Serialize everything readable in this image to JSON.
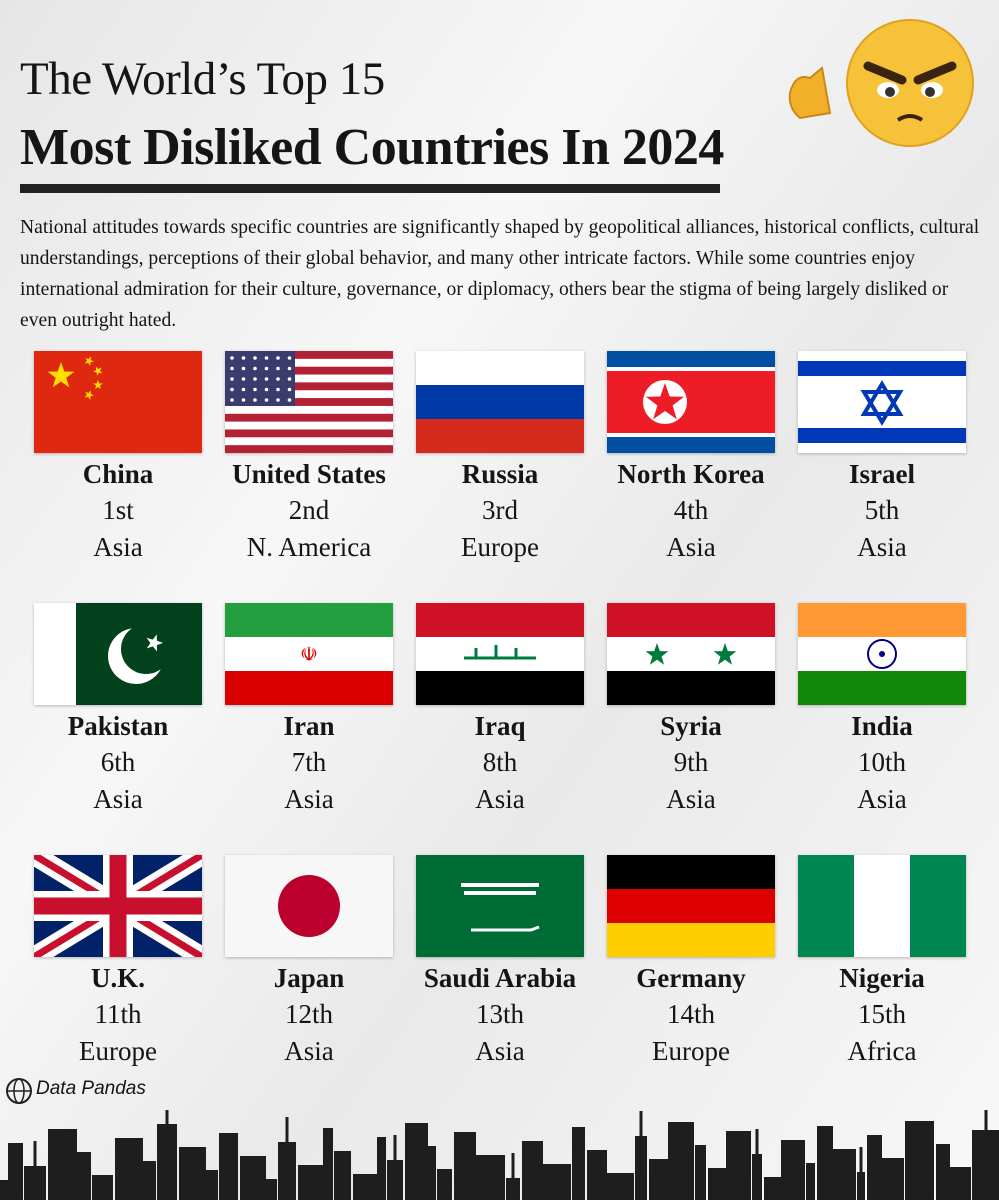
{
  "header": {
    "title_line1": "The World’s Top 15",
    "title_line2": "Most Disliked Countries In 2024",
    "intro": "National attitudes towards specific countries are significantly shaped by geopolitical alliances, historical conflicts, cultural understandings, perceptions of their global behavior, and many other intricate factors. While some countries enjoy international admiration for their culture, governance, or diplomacy, others bear the stigma of being largely disliked or even outright hated."
  },
  "countries": [
    {
      "name": "China",
      "rank": "1st",
      "region": "Asia"
    },
    {
      "name": "United States",
      "rank": "2nd",
      "region": "N. America"
    },
    {
      "name": "Russia",
      "rank": "3rd",
      "region": "Europe"
    },
    {
      "name": "North Korea",
      "rank": "4th",
      "region": "Asia"
    },
    {
      "name": "Israel",
      "rank": "5th",
      "region": "Asia"
    },
    {
      "name": "Pakistan",
      "rank": "6th",
      "region": "Asia"
    },
    {
      "name": "Iran",
      "rank": "7th",
      "region": "Asia"
    },
    {
      "name": "Iraq",
      "rank": "8th",
      "region": "Asia"
    },
    {
      "name": "Syria",
      "rank": "9th",
      "region": "Asia"
    },
    {
      "name": "India",
      "rank": "10th",
      "region": "Asia"
    },
    {
      "name": "U.K.",
      "rank": "11th",
      "region": "Europe"
    },
    {
      "name": "Japan",
      "rank": "12th",
      "region": "Asia"
    },
    {
      "name": "Saudi Arabia",
      "rank": "13th",
      "region": "Asia"
    },
    {
      "name": "Germany",
      "rank": "14th",
      "region": "Europe"
    },
    {
      "name": "Nigeria",
      "rank": "15th",
      "region": "Africa"
    }
  ],
  "footer": {
    "source": "Data Pandas"
  }
}
